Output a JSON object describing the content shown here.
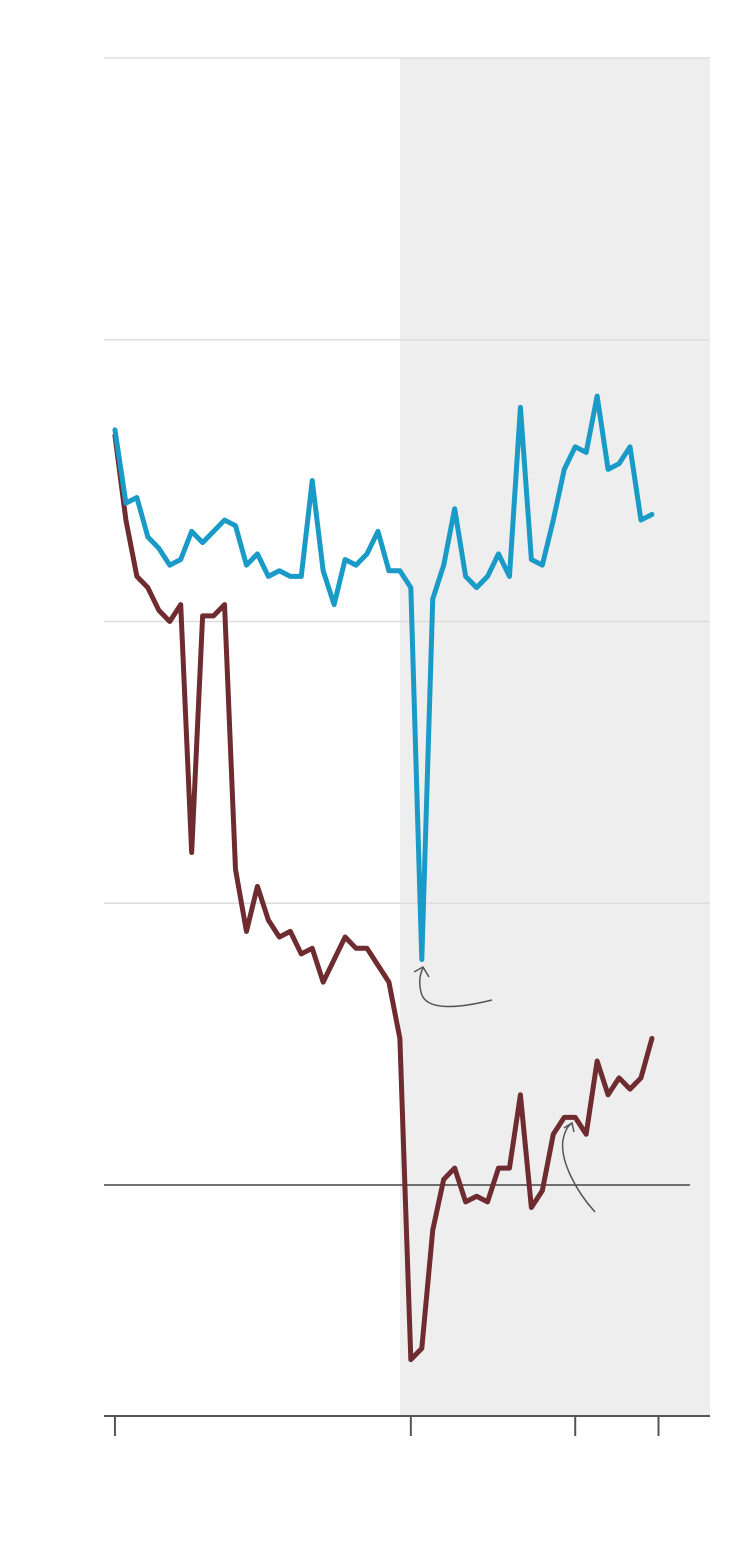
{
  "chart_data": {
    "type": "line",
    "x": [
      0,
      1,
      2,
      3,
      4,
      5,
      6,
      7,
      8,
      9,
      10,
      11,
      12,
      13,
      14,
      15,
      16,
      17,
      18,
      19,
      20,
      21,
      22,
      23,
      24,
      25,
      26,
      27,
      28,
      29,
      30,
      31,
      32,
      33,
      34,
      35,
      36,
      37,
      38,
      39,
      40,
      41,
      42,
      43,
      44,
      45,
      46,
      47,
      48,
      49
    ],
    "series": [
      {
        "color": "#1a9bc7",
        "values": [
          2.68,
          2.42,
          2.44,
          2.3,
          2.26,
          2.2,
          2.22,
          2.32,
          2.28,
          2.32,
          2.36,
          2.34,
          2.2,
          2.24,
          2.16,
          2.18,
          2.16,
          2.16,
          2.5,
          2.18,
          2.06,
          2.22,
          2.2,
          2.24,
          2.32,
          2.18,
          2.18,
          2.12,
          0.8,
          2.08,
          2.2,
          2.4,
          2.16,
          2.12,
          2.16,
          2.24,
          2.16,
          2.76,
          2.22,
          2.2,
          2.36,
          2.54,
          2.62,
          2.6,
          2.8,
          2.54,
          2.56,
          2.62,
          2.36,
          2.38
        ]
      },
      {
        "color": "#6e2b30",
        "values": [
          2.66,
          2.36,
          2.16,
          2.12,
          2.04,
          2.0,
          2.06,
          1.18,
          2.02,
          2.02,
          2.06,
          1.12,
          0.9,
          1.06,
          0.94,
          0.88,
          0.9,
          0.82,
          0.84,
          0.72,
          0.8,
          0.88,
          0.84,
          0.84,
          0.78,
          0.72,
          0.52,
          -0.62,
          -0.58,
          -0.16,
          0.02,
          0.06,
          -0.06,
          -0.04,
          -0.06,
          0.06,
          0.06,
          0.32,
          -0.08,
          -0.02,
          0.18,
          0.24,
          0.24,
          0.18,
          0.44,
          0.32,
          0.38,
          0.34,
          0.38,
          0.52
        ]
      }
    ],
    "xlim": [
      -1,
      54.3
    ],
    "ylim": [
      -0.82,
      4
    ],
    "xticks": [
      0,
      27,
      42,
      49.6
    ],
    "yticks": [
      1,
      2,
      3,
      4
    ],
    "baseline": 0,
    "shaded_x": [
      26,
      54.3
    ],
    "shade_color": "#eeeeee",
    "grid": true
  }
}
